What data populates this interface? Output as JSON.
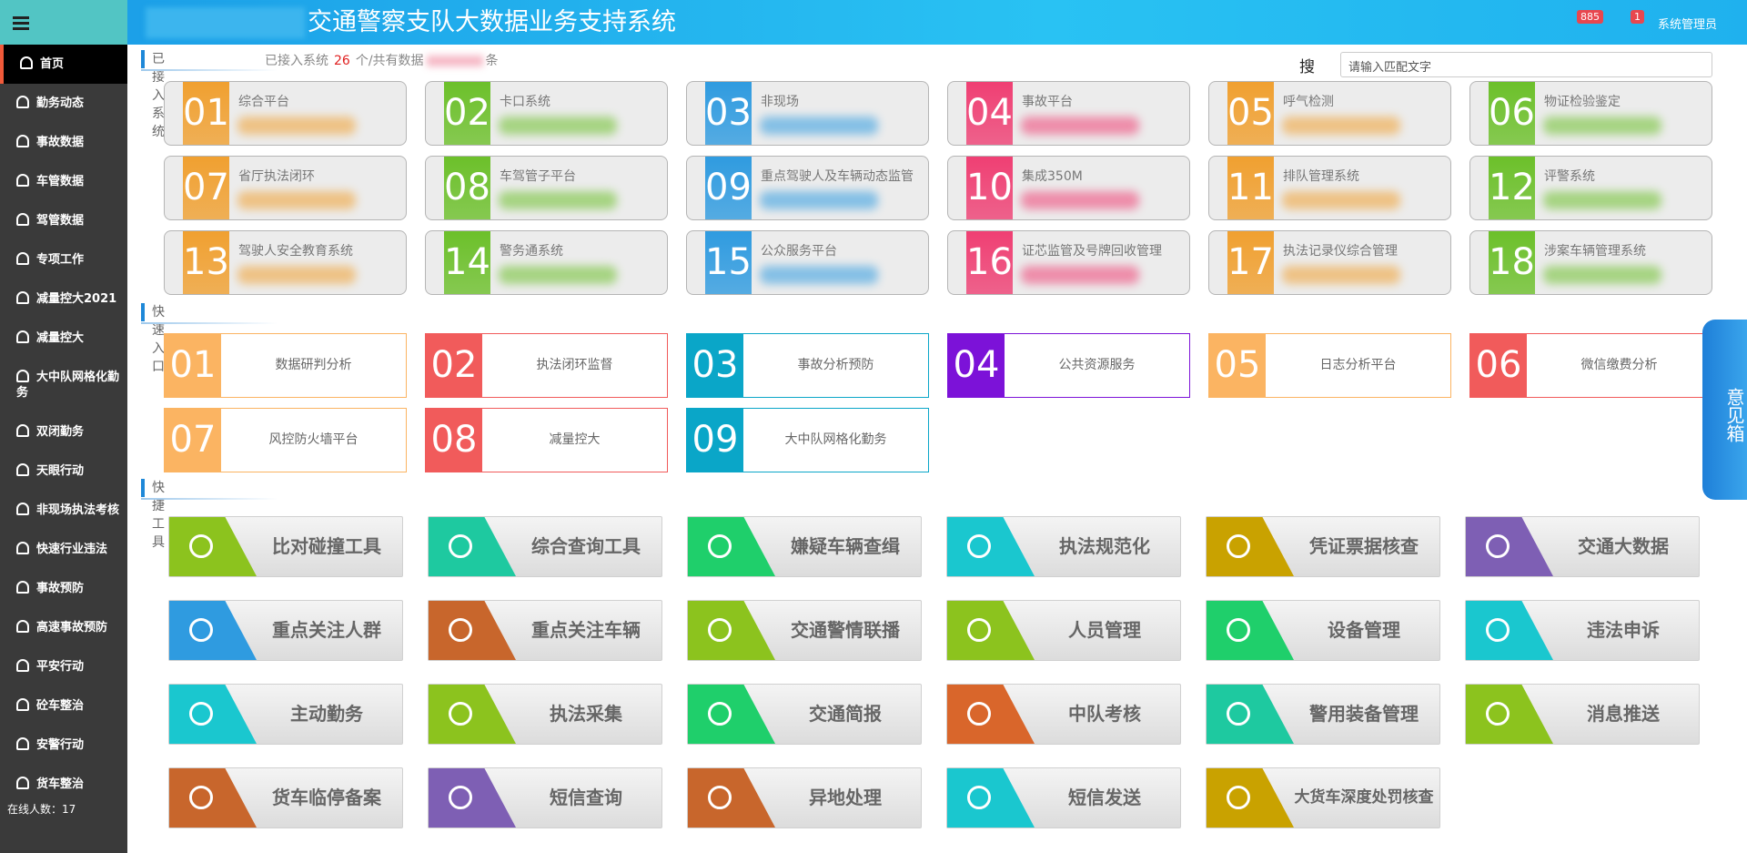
{
  "header": {
    "title": "交通警察支队大数据业务支持系统",
    "alerts_count": "885",
    "messages_count": "1",
    "user": "系统管理员"
  },
  "sidebar": {
    "items": [
      "首页",
      "勤务动态",
      "事故数据",
      "车管数据",
      "驾管数据",
      "专项工作",
      "减量控大2021",
      "减量控大",
      "大中队网格化勤务",
      "双闭勤务",
      "天眼行动",
      "非现场执法考核",
      "快速行业违法",
      "事故预防",
      "高速事故预防",
      "平安行动",
      "砼车整治",
      "安警行动",
      "货车整治"
    ],
    "online": "在线人数：17"
  },
  "systems": {
    "title": "已接入系统",
    "summary": [
      "已接入系统",
      "26",
      "个/共有数据",
      "条"
    ],
    "items": [
      {
        "num": "01",
        "name": "综合平台",
        "color": "#f0a030"
      },
      {
        "num": "02",
        "name": "卡口系统",
        "color": "#6cc02a"
      },
      {
        "num": "03",
        "name": "非现场",
        "color": "#2f9be0"
      },
      {
        "num": "04",
        "name": "事故平台",
        "color": "#ef3f73"
      },
      {
        "num": "05",
        "name": "呼气检测",
        "color": "#f0a030"
      },
      {
        "num": "06",
        "name": "物证检验鉴定",
        "color": "#6cc02a"
      },
      {
        "num": "07",
        "name": "省厅执法闭环",
        "color": "#f0a030"
      },
      {
        "num": "08",
        "name": "车驾管子平台",
        "color": "#6cc02a"
      },
      {
        "num": "09",
        "name": "重点驾驶人及车辆动态监管",
        "color": "#2f9be0"
      },
      {
        "num": "10",
        "name": "集成350M",
        "color": "#ef3f73"
      },
      {
        "num": "11",
        "name": "排队管理系统",
        "color": "#f0a030"
      },
      {
        "num": "12",
        "name": "评警系统",
        "color": "#6cc02a"
      },
      {
        "num": "13",
        "name": "驾驶人安全教育系统",
        "color": "#f0a030"
      },
      {
        "num": "14",
        "name": "警务通系统",
        "color": "#6cc02a"
      },
      {
        "num": "15",
        "name": "公众服务平台",
        "color": "#2f9be0"
      },
      {
        "num": "16",
        "name": "证芯监管及号牌回收管理",
        "color": "#ef3f73"
      },
      {
        "num": "17",
        "name": "执法记录仪综合管理",
        "color": "#f0a030"
      },
      {
        "num": "18",
        "name": "涉案车辆管理系统",
        "color": "#6cc02a"
      }
    ]
  },
  "search": {
    "label": "搜索:",
    "placeholder": "请输入匹配文字"
  },
  "quick": {
    "title": "快速入口",
    "items": [
      {
        "num": "01",
        "name": "数据研判分析",
        "color": "#fbb462"
      },
      {
        "num": "02",
        "name": "执法闭环监督",
        "color": "#f15b5b"
      },
      {
        "num": "03",
        "name": "事故分析预防",
        "color": "#0aa6c8"
      },
      {
        "num": "04",
        "name": "公共资源服务",
        "color": "#7c12d8"
      },
      {
        "num": "05",
        "name": "日志分析平台",
        "color": "#fbb462"
      },
      {
        "num": "06",
        "name": "微信缴费分析",
        "color": "#f15b5b"
      },
      {
        "num": "07",
        "name": "风控防火墙平台",
        "color": "#fbb462"
      },
      {
        "num": "08",
        "name": "减量控大",
        "color": "#f15b5b"
      },
      {
        "num": "09",
        "name": "大中队网格化勤务",
        "color": "#0aa6c8"
      }
    ]
  },
  "tools": {
    "title": "快捷工具",
    "items": [
      {
        "name": "比对碰撞工具",
        "color": "#8cc31e"
      },
      {
        "name": "综合查询工具",
        "color": "#1ec9a0"
      },
      {
        "name": "嫌疑车辆查缉",
        "color": "#1fcf6b"
      },
      {
        "name": "执法规范化",
        "color": "#1ac7cf"
      },
      {
        "name": "凭证票据核查",
        "color": "#c9a200"
      },
      {
        "name": "交通大数据",
        "color": "#7e5fb4"
      },
      {
        "name": "重点关注人群",
        "color": "#2f9be0"
      },
      {
        "name": "重点关注车辆",
        "color": "#c8662c"
      },
      {
        "name": "交通警情联播",
        "color": "#8cc31e"
      },
      {
        "name": "人员管理",
        "color": "#8cc31e"
      },
      {
        "name": "设备管理",
        "color": "#1fcf6b"
      },
      {
        "name": "违法申诉",
        "color": "#1ac7cf"
      },
      {
        "name": "主动勤务",
        "color": "#1ac7cf"
      },
      {
        "name": "执法采集",
        "color": "#8cc31e"
      },
      {
        "name": "交通简报",
        "color": "#1fcf6b"
      },
      {
        "name": "中队考核",
        "color": "#d9662b"
      },
      {
        "name": "警用装备管理",
        "color": "#1ec9a0"
      },
      {
        "name": "消息推送",
        "color": "#8cc31e"
      },
      {
        "name": "货车临停备案",
        "color": "#c8662c"
      },
      {
        "name": "短信查询",
        "color": "#7e5fb4"
      },
      {
        "name": "异地处理",
        "color": "#c8662c"
      },
      {
        "name": "短信发送",
        "color": "#1ac7cf"
      },
      {
        "name": "大货车深度处罚核查",
        "color": "#c9a200"
      }
    ]
  },
  "feedback": "意见箱"
}
